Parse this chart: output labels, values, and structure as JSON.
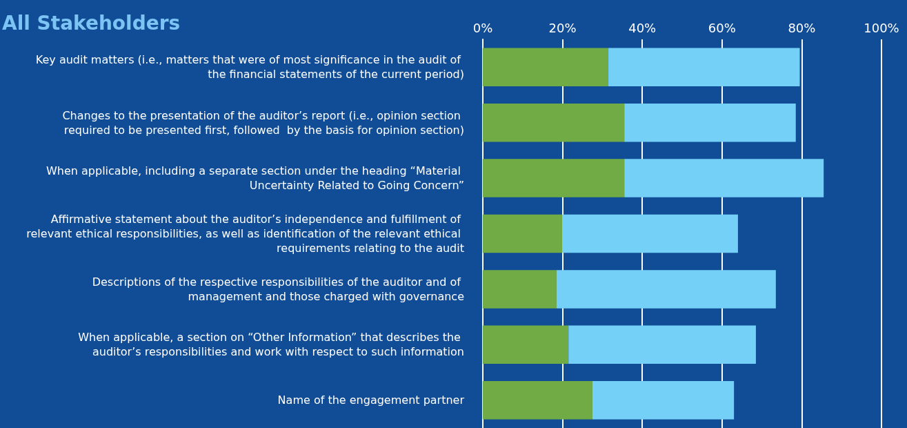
{
  "chart_data": {
    "type": "bar",
    "title": "All Stakeholders",
    "orientation": "horizontal",
    "stacked": true,
    "categories": [
      "Key audit matters (i.e., matters that were of most significance in the audit of the financial statements of the current period)",
      "Changes to the presentation of the auditor’s report (i.e., opinion section required to be presented first, followed  by the basis for opinion section)",
      "When applicable, including a separate section under the heading “Material Uncertainty Related to Going Concern”",
      "Affirmative statement about the auditor’s independence and fulfillment of relevant ethical responsibilities, as well as identification of the relevant ethical requirements relating to the audit",
      "Descriptions of the respective responsibilities of the auditor and of management and those charged with governance",
      "When applicable, a section on “Other Information” that describes the auditor’s responsibilities and work with respect to such information",
      "Name of the engagement partner"
    ],
    "series": [
      {
        "color": "#70ab46",
        "values": [
          31.5,
          35.5,
          35.5,
          20,
          18.5,
          21.5,
          27.5
        ]
      },
      {
        "color": "#75d0f7",
        "values": [
          48,
          43,
          50,
          44,
          55,
          47,
          35.5
        ]
      }
    ],
    "xlim": [
      0,
      100
    ],
    "xticks": [
      {
        "value": 0,
        "label": "0%"
      },
      {
        "value": 20,
        "label": "20%"
      },
      {
        "value": 40,
        "label": "40%"
      },
      {
        "value": 60,
        "label": "60%"
      },
      {
        "value": 80,
        "label": "80%"
      },
      {
        "value": 100,
        "label": "100%"
      }
    ],
    "grid": "x"
  }
}
